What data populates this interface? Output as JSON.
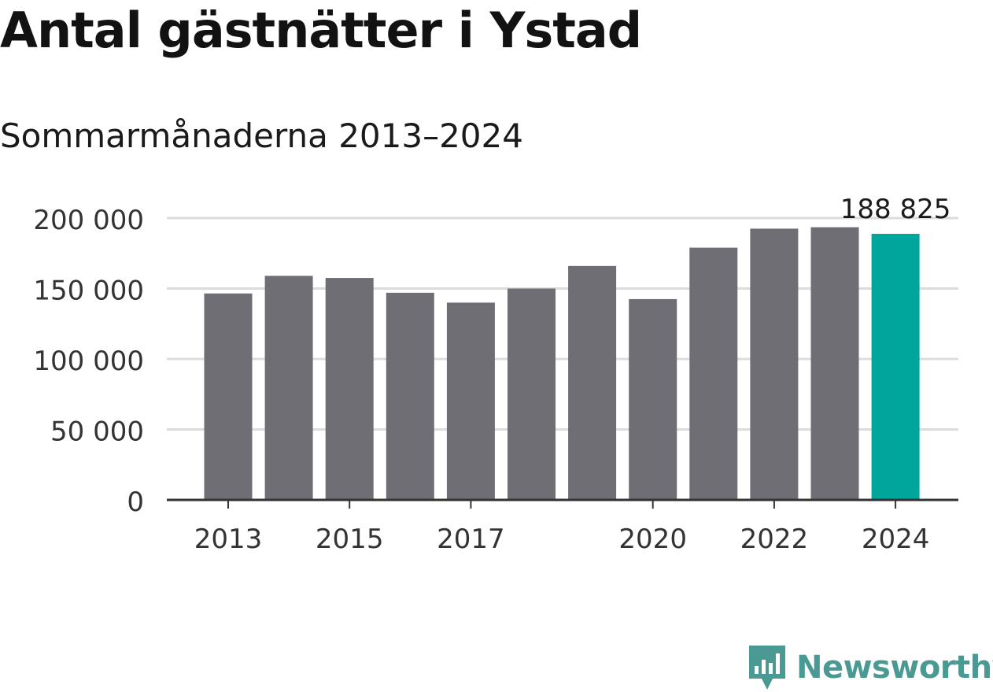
{
  "title": "Antal gästnätter i Ystad",
  "subtitle": "Sommarmånaderna 2013–2024",
  "source_logo": "Newsworthy",
  "colors": {
    "bar": "#6f6e74",
    "highlight": "#00a59b",
    "grid": "#dcdcdc",
    "axis": "#333333",
    "logo": "#4a9a93"
  },
  "chart_data": {
    "type": "bar",
    "categories": [
      "2013",
      "2014",
      "2015",
      "2016",
      "2017",
      "2018",
      "2019",
      "2020",
      "2021",
      "2022",
      "2023",
      "2024"
    ],
    "values": [
      146500,
      159000,
      157500,
      147000,
      140000,
      150000,
      166000,
      142500,
      179000,
      192500,
      193500,
      188825
    ],
    "highlight_index": 11,
    "data_labels": [
      {
        "index": 11,
        "text": "188 825"
      }
    ],
    "x_tick_labels": [
      {
        "index": 0,
        "text": "2013"
      },
      {
        "index": 2,
        "text": "2015"
      },
      {
        "index": 4,
        "text": "2017"
      },
      {
        "index": 7,
        "text": "2020"
      },
      {
        "index": 9,
        "text": "2022"
      },
      {
        "index": 11,
        "text": "2024"
      }
    ],
    "y_ticks": [
      0,
      50000,
      100000,
      150000,
      200000
    ],
    "y_tick_labels": [
      "0",
      "50 000",
      "100 000",
      "150 000",
      "200 000"
    ],
    "ylim": [
      0,
      200000
    ],
    "grid": true
  }
}
